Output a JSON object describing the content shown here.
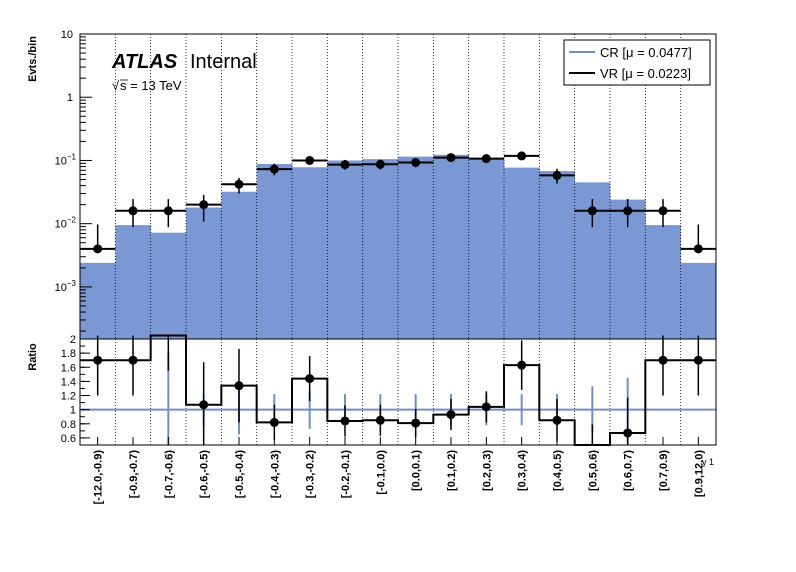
{
  "annotations": {
    "atlas": "ATLAS",
    "internal": "Internal",
    "energy_root": "√",
    "energy_rest": "s = 13 TeV"
  },
  "colors": {
    "cr_fill": "#7a98d3",
    "cr_line": "#6f8fcc",
    "vr": "#000000",
    "grid": "#000000"
  },
  "chart_data": [
    {
      "type": "bar",
      "panel": "main",
      "ylabel": "Evts./bin",
      "yscale": "log",
      "ylim": [
        0.00015,
        10
      ],
      "yticks": [
        {
          "value": 0.001,
          "base": "10",
          "exp": "−3"
        },
        {
          "value": 0.01,
          "base": "10",
          "exp": "−2"
        },
        {
          "value": 0.1,
          "base": "10",
          "exp": "−1"
        },
        {
          "value": 1,
          "base": "1",
          "exp": ""
        },
        {
          "value": 10,
          "base": "10",
          "exp": ""
        }
      ],
      "categories": [
        "[-12.0,-0.9)",
        "[-0.9,-0.7)",
        "[-0.7,-0.6)",
        "[-0.6,-0.5)",
        "[-0.5,-0.4)",
        "[-0.4,-0.3)",
        "[-0.3,-0.2)",
        "[-0.2,-0.1)",
        "[-0.1,0.0)",
        "[0.0,0.1)",
        "[0.1,0.2)",
        "[0.2,0.3)",
        "[0.3,0.4)",
        "[0.4,0.5)",
        "[0.5,0.6)",
        "[0.6,0.7)",
        "[0.7,0.9)",
        "[0.9,12.0)"
      ],
      "legend": [
        {
          "label": "CR [μ = 0.0477]",
          "style": "line",
          "color": "#6f8fcc"
        },
        {
          "label": "VR [μ = 0.0223]",
          "style": "line",
          "color": "#000000"
        }
      ],
      "legend_position": "top-right",
      "series": [
        {
          "name": "CR",
          "kind": "filled-histogram",
          "values": [
            0.0024,
            0.0095,
            0.0072,
            0.018,
            0.032,
            0.088,
            0.078,
            0.1,
            0.105,
            0.115,
            0.123,
            0.11,
            0.077,
            0.068,
            0.045,
            0.024,
            0.0095,
            0.0024
          ]
        },
        {
          "name": "VR",
          "kind": "points-with-errors",
          "values": [
            0.004,
            0.016,
            0.016,
            0.02,
            0.042,
            0.073,
            0.1,
            0.086,
            0.087,
            0.093,
            0.111,
            0.107,
            0.118,
            0.058,
            0.016,
            0.016,
            0.016,
            0.004
          ],
          "err_low": [
            0.00015,
            0.0072,
            0.0072,
            0.0092,
            0.012,
            0.015,
            0.015,
            0.015,
            0.015,
            0.015,
            0.015,
            0.015,
            0.015,
            0.015,
            0.0072,
            0.0072,
            0.0072,
            0.00015
          ],
          "err_high": [
            0.0057,
            0.0085,
            0.0085,
            0.0085,
            0.011,
            0.016,
            0.016,
            0.016,
            0.016,
            0.016,
            0.016,
            0.016,
            0.016,
            0.016,
            0.0085,
            0.0085,
            0.0085,
            0.0057
          ]
        }
      ],
      "grid": "vertical dotted lines at bin edges"
    },
    {
      "type": "line",
      "panel": "ratio",
      "ylabel": "Ratio",
      "xlabel": "γ 1",
      "ylim": [
        0.5,
        2.0
      ],
      "yticks": [
        "0.6",
        "0.8",
        "1",
        "1.2",
        "1.4",
        "1.6",
        "1.8",
        "2"
      ],
      "reference_line": 1,
      "series": [
        {
          "name": "CR relative uncertainty",
          "kind": "errorbars-at-1",
          "err": [
            0,
            0,
            0.8,
            0.22,
            0.35,
            0.22,
            0.27,
            0.22,
            0.22,
            0.22,
            0.22,
            0.22,
            0.22,
            0.22,
            0.33,
            0.45,
            0,
            0
          ]
        },
        {
          "name": "VR/CR",
          "kind": "step-with-points",
          "values": [
            1.7,
            1.7,
            2.05,
            1.07,
            1.34,
            0.82,
            1.44,
            0.84,
            0.85,
            0.81,
            0.93,
            1.04,
            1.63,
            0.85,
            0.49,
            0.67,
            1.7,
            1.7
          ],
          "show_marker": [
            true,
            true,
            false,
            true,
            true,
            true,
            true,
            true,
            true,
            true,
            true,
            true,
            true,
            true,
            false,
            true,
            true,
            true
          ],
          "err": [
            0.5,
            0.5,
            0.5,
            0.6,
            0.52,
            0.25,
            0.32,
            0.22,
            0.22,
            0.2,
            0.22,
            0.22,
            0.35,
            0.3,
            0.3,
            0.5,
            0.5,
            0.5
          ]
        }
      ]
    }
  ]
}
